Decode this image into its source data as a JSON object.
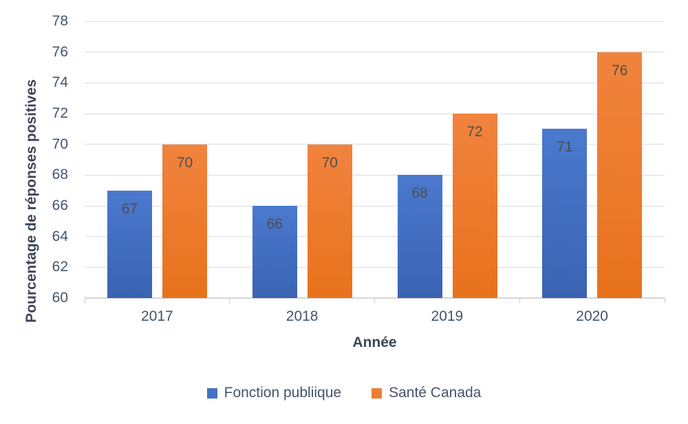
{
  "chart_data": {
    "type": "bar",
    "title": "",
    "categories": [
      "2017",
      "2018",
      "2019",
      "2020"
    ],
    "series": [
      {
        "name": "Fonction publiique",
        "values": [
          67,
          66,
          68,
          71
        ],
        "color": "#4472c4",
        "color_top": "#4a79ce",
        "color_bottom": "#3a63b2"
      },
      {
        "name": "Santé Canada",
        "values": [
          70,
          70,
          72,
          76
        ],
        "color": "#ed7d31",
        "color_top": "#f1833e",
        "color_bottom": "#e8721c"
      }
    ],
    "xlabel": "Année",
    "ylabel": "Pourcentage de réponses positives",
    "ylim": [
      60,
      78
    ],
    "ytick_step": 2,
    "yticks": [
      60,
      62,
      64,
      66,
      68,
      70,
      72,
      74,
      76,
      78
    ],
    "grid": true,
    "data_labels": true,
    "legend_position": "bottom"
  },
  "colors": {
    "background": "#ffffff",
    "gridline": "#dcdcdc",
    "axis_line": "#d6d6d6",
    "tick_mark": "#c9ced6",
    "tick_text": "#44546a",
    "axis_title_text": "#3a4757",
    "data_label_text": "#4d4d4d",
    "series_blue": "#4472c4",
    "series_orange": "#ed7d31"
  }
}
